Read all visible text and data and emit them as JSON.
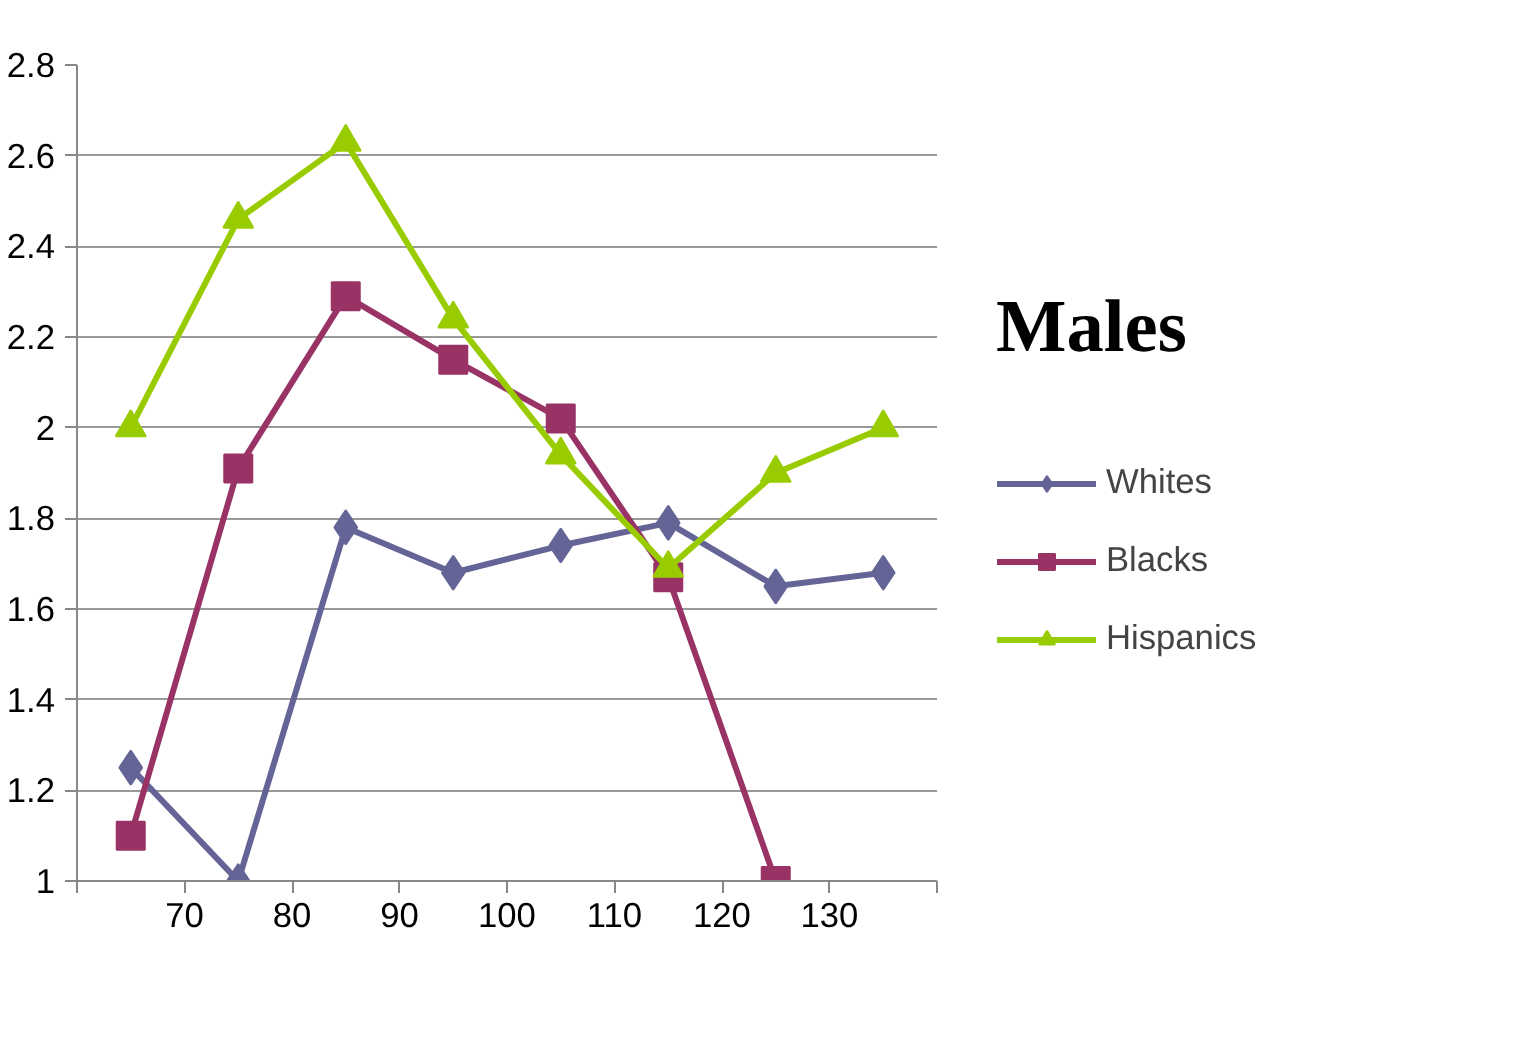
{
  "chart_data": {
    "type": "line",
    "title": "Males",
    "xlim": [
      60,
      140
    ],
    "xticks": [
      {
        "value": 60,
        "label": null
      },
      70,
      80,
      90,
      100,
      110,
      120,
      130,
      {
        "value": 140,
        "label": null
      }
    ],
    "ylim": [
      1,
      2.8
    ],
    "yticks": [
      {
        "value": 1,
        "label": "1"
      },
      1.2,
      1.4,
      1.6,
      1.8,
      {
        "value": 2,
        "label": "2"
      },
      2.2,
      2.4,
      2.6,
      2.8
    ],
    "x": [
      65,
      75,
      85,
      95,
      105,
      115,
      125,
      135
    ],
    "grid": "y",
    "legend": "right",
    "series": [
      {
        "name": "Whites",
        "color": "#646496",
        "marker": "diamond",
        "values": [
          1.25,
          1.0,
          1.78,
          1.68,
          1.74,
          1.79,
          1.65,
          1.68
        ]
      },
      {
        "name": "Blacks",
        "color": "#993366",
        "marker": "square",
        "values": [
          1.1,
          1.91,
          2.29,
          2.15,
          2.02,
          1.67,
          1.0,
          null
        ]
      },
      {
        "name": "Hispanics",
        "color": "#99cc00",
        "marker": "triangle",
        "values": [
          2.0,
          2.46,
          2.63,
          2.24,
          1.94,
          1.69,
          1.9,
          2.0
        ]
      }
    ]
  }
}
